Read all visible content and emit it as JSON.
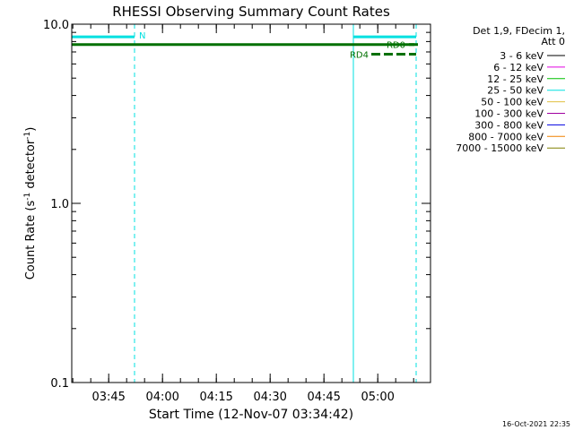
{
  "chart_data": {
    "type": "line",
    "title": "RHESSI Observing Summary Count Rates",
    "xlabel": "Start Time (12-Nov-07 03:34:42)",
    "ylabel_main": "Count Rate (s",
    "ylabel_sup1": "-1",
    "ylabel_mid": " detector",
    "ylabel_sup2": "-1",
    "ylabel_end": ")",
    "y_scale": "log",
    "ylim": [
      0.1,
      10.0
    ],
    "xlim_minutes": [
      0,
      100
    ],
    "x_ticks": [
      {
        "label": "03:45",
        "minutes": 10.3
      },
      {
        "label": "04:00",
        "minutes": 25.3
      },
      {
        "label": "04:15",
        "minutes": 40.3
      },
      {
        "label": "04:30",
        "minutes": 55.3
      },
      {
        "label": "04:45",
        "minutes": 70.3
      },
      {
        "label": "05:00",
        "minutes": 85.3
      }
    ],
    "y_ticks": [
      {
        "label": "10.0",
        "value": 10.0
      },
      {
        "label": "1.0",
        "value": 1.0
      },
      {
        "label": "0.1",
        "value": 0.1
      }
    ],
    "legend_header": [
      "Det 1,9, FDecim 1,",
      "Att 0"
    ],
    "series": [
      {
        "name": "3 - 6 keV",
        "color": "#000000"
      },
      {
        "name": "6 - 12 keV",
        "color": "#e000e0"
      },
      {
        "name": "12 - 25 keV",
        "color": "#00c000"
      },
      {
        "name": "25 - 50 keV",
        "color": "#00e0e0"
      },
      {
        "name": "50 - 100 keV",
        "color": "#e0c040"
      },
      {
        "name": "100 - 300 keV",
        "color": "#a000a0"
      },
      {
        "name": "300 - 800 keV",
        "color": "#0000e0"
      },
      {
        "name": "800 - 7000 keV",
        "color": "#f08000"
      },
      {
        "name": "7000 - 15000 keV",
        "color": "#808000"
      }
    ],
    "night_intervals": [
      {
        "start_minutes": 0,
        "end_minutes": 17.5,
        "label": "N"
      },
      {
        "start_minutes": 78.5,
        "end_minutes": 96,
        "label": ""
      }
    ],
    "saa_level_cyan": 8.5,
    "green_level": 7.7,
    "rd_markers": [
      {
        "label": "RD0",
        "y_value": 7.7,
        "start_minutes": 94,
        "end_minutes": 97
      },
      {
        "label": "RD4",
        "y_value": 6.8,
        "start_minutes": 83.5,
        "end_minutes": 96
      }
    ],
    "timestamp": "16-Oct-2021 22:35"
  }
}
